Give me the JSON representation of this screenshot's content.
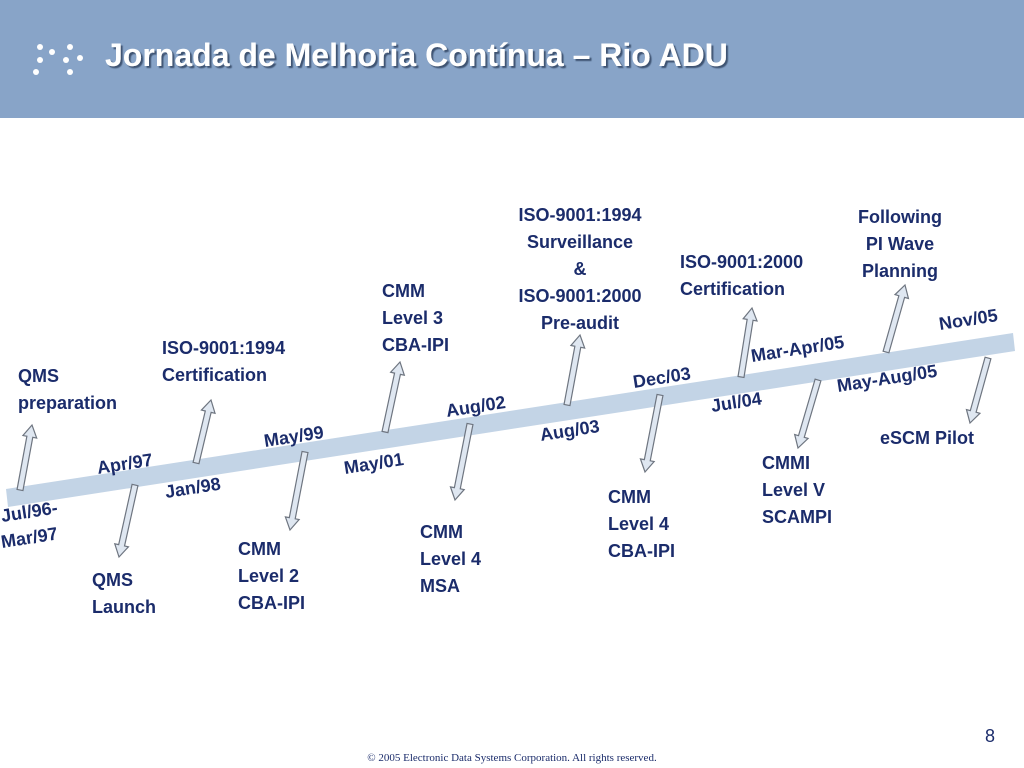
{
  "header": {
    "title": "Jornada de Melhoria Contínua – Rio ADU"
  },
  "milestones": [
    {
      "date": [
        "Jul/96-",
        "Mar/97"
      ],
      "label": [
        "QMS",
        "preparation"
      ]
    },
    {
      "date": [
        "Apr/97"
      ],
      "label": [
        "QMS",
        "Launch"
      ]
    },
    {
      "date": [
        "Jan/98"
      ],
      "label": [
        "ISO-9001:1994",
        "Certification"
      ]
    },
    {
      "date": [
        "May/99"
      ],
      "label": [
        "CMM",
        "Level 2",
        "CBA-IPI"
      ]
    },
    {
      "date": [
        "May/01"
      ],
      "label": [
        "CMM",
        "Level 3",
        "CBA-IPI"
      ]
    },
    {
      "date": [
        "Aug/02"
      ],
      "label": [
        "CMM",
        "Level 4",
        "MSA"
      ]
    },
    {
      "date": [
        "Aug/03"
      ],
      "label": [
        "ISO-9001:1994",
        "Surveillance",
        "&",
        "ISO-9001:2000",
        "Pre-audit"
      ]
    },
    {
      "date": [
        "Dec/03"
      ],
      "label": [
        "CMM",
        "Level  4",
        "CBA-IPI"
      ]
    },
    {
      "date": [
        "Jul/04"
      ],
      "label": [
        "ISO-9001:2000",
        "Certification"
      ]
    },
    {
      "date": [
        "Mar-Apr/05"
      ],
      "label": [
        "CMMI",
        "Level V",
        "SCAMPI"
      ]
    },
    {
      "date": [
        "May-Aug/05"
      ],
      "label": [
        "Following",
        "PI Wave",
        "Planning"
      ]
    },
    {
      "date": [
        "Nov/05"
      ],
      "label": [
        "eSCM Pilot"
      ]
    }
  ],
  "footer": {
    "page": "8",
    "copyright": "© 2005 Electronic Data Systems Corporation. All rights reserved."
  }
}
